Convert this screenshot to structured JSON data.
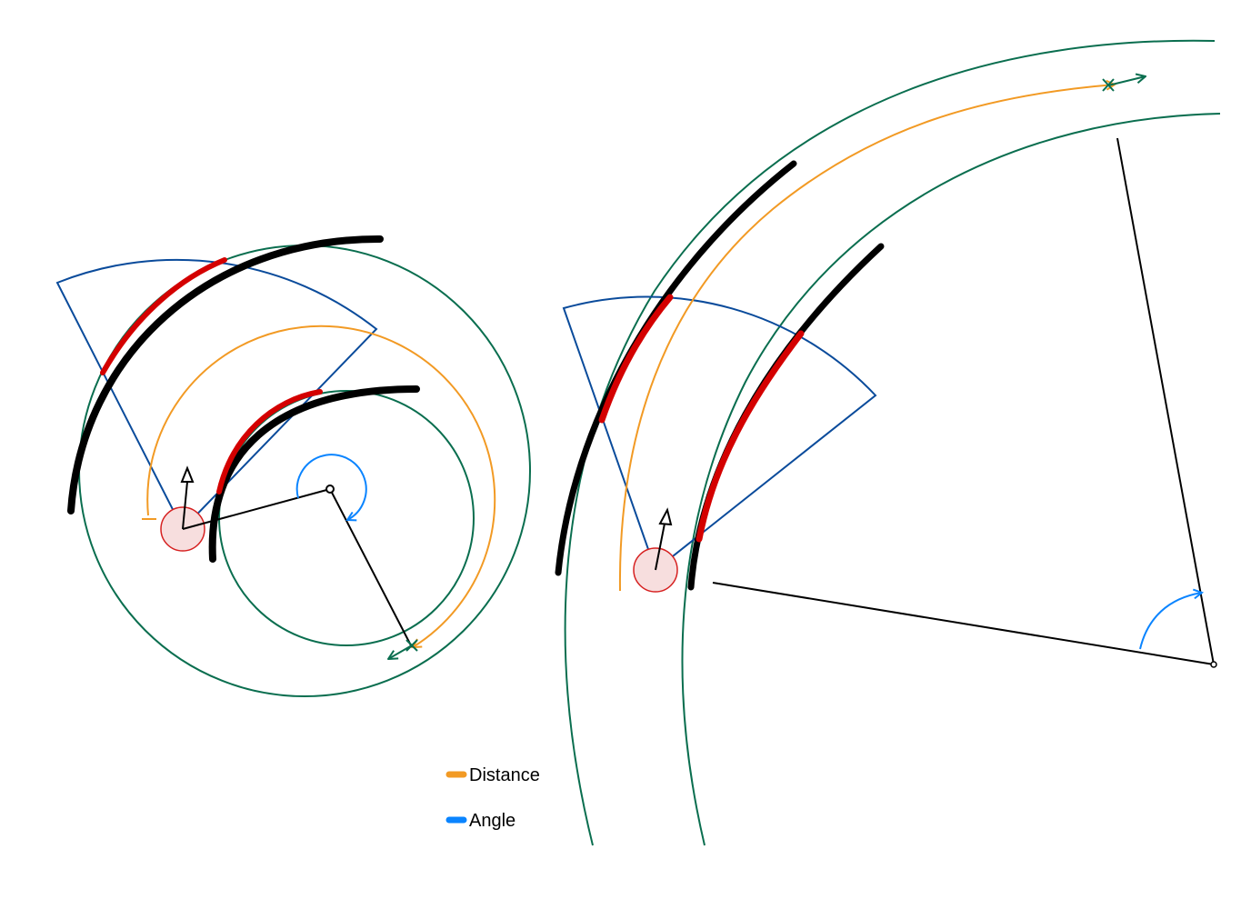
{
  "colors": {
    "road": "#000000",
    "lane_edge": "#0a6e4f",
    "highlight": "#d40000",
    "sensor_fov": "#0a4b9b",
    "distance": "#f29a24",
    "angle": "#0a84ff",
    "vehicle_fill": "#f7dede",
    "vehicle_stroke": "#d62020",
    "line": "#000000"
  },
  "legend": {
    "items": [
      {
        "label": "Distance",
        "color": "#f29a24"
      },
      {
        "label": "Angle",
        "color": "#0a84ff"
      }
    ]
  }
}
